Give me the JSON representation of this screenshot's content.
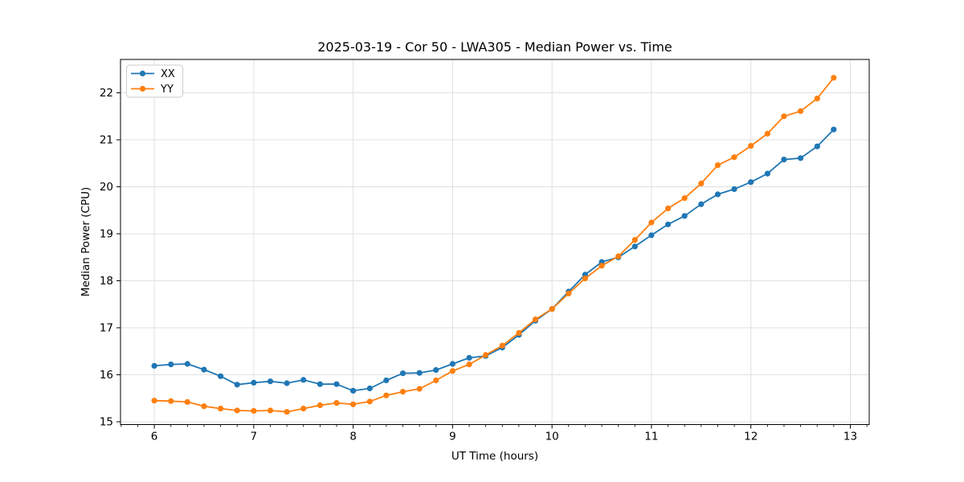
{
  "figure": {
    "background": "#ffffff"
  },
  "chart_data": {
    "type": "line",
    "title": "2025-03-19 - Cor 50 - LWA305 - Median Power vs. Time",
    "xlabel": "UT Time (hours)",
    "ylabel": "Median Power (CPU)",
    "xlim": [
      5.66,
      13.19
    ],
    "ylim": [
      14.94,
      22.71
    ],
    "xticks": [
      6,
      7,
      8,
      9,
      10,
      11,
      12,
      13
    ],
    "yticks": [
      15,
      16,
      17,
      18,
      19,
      20,
      21,
      22
    ],
    "x_minor_step": 0.1666667,
    "grid": true,
    "grid_color": "#e0e0e0",
    "spine_color": "#000000",
    "legend": {
      "position": "upper left"
    },
    "x": [
      6,
      6.167,
      6.333,
      6.5,
      6.667,
      6.833,
      7,
      7.167,
      7.333,
      7.5,
      7.667,
      7.833,
      8,
      8.167,
      8.333,
      8.5,
      8.667,
      8.833,
      9,
      9.167,
      9.333,
      9.5,
      9.667,
      9.833,
      10,
      10.167,
      10.333,
      10.5,
      10.667,
      10.833,
      11,
      11.167,
      11.333,
      11.5,
      11.667,
      11.833,
      12,
      12.167,
      12.333,
      12.5,
      12.667,
      12.833
    ],
    "series": [
      {
        "name": "XX",
        "color": "#1f77b4",
        "values": [
          16.19,
          16.22,
          16.23,
          16.11,
          15.97,
          15.79,
          15.83,
          15.86,
          15.82,
          15.89,
          15.8,
          15.8,
          15.66,
          15.71,
          15.88,
          16.03,
          16.04,
          16.1,
          16.23,
          16.36,
          16.4,
          16.58,
          16.85,
          17.15,
          17.4,
          17.77,
          18.13,
          18.4,
          18.5,
          18.73,
          18.97,
          19.2,
          19.38,
          19.63,
          19.84,
          19.95,
          20.1,
          20.28,
          20.58,
          20.61,
          20.86,
          21.22
        ]
      },
      {
        "name": "YY",
        "color": "#ff7f0e",
        "values": [
          15.45,
          15.44,
          15.42,
          15.33,
          15.28,
          15.24,
          15.23,
          15.24,
          15.21,
          15.28,
          15.35,
          15.4,
          15.37,
          15.43,
          15.56,
          15.64,
          15.7,
          15.88,
          16.08,
          16.22,
          16.42,
          16.62,
          16.89,
          17.18,
          17.4,
          17.73,
          18.05,
          18.32,
          18.52,
          18.87,
          19.24,
          19.54,
          19.76,
          20.07,
          20.46,
          20.63,
          20.87,
          21.13,
          21.5,
          21.61,
          21.88,
          22.32
        ]
      }
    ]
  }
}
